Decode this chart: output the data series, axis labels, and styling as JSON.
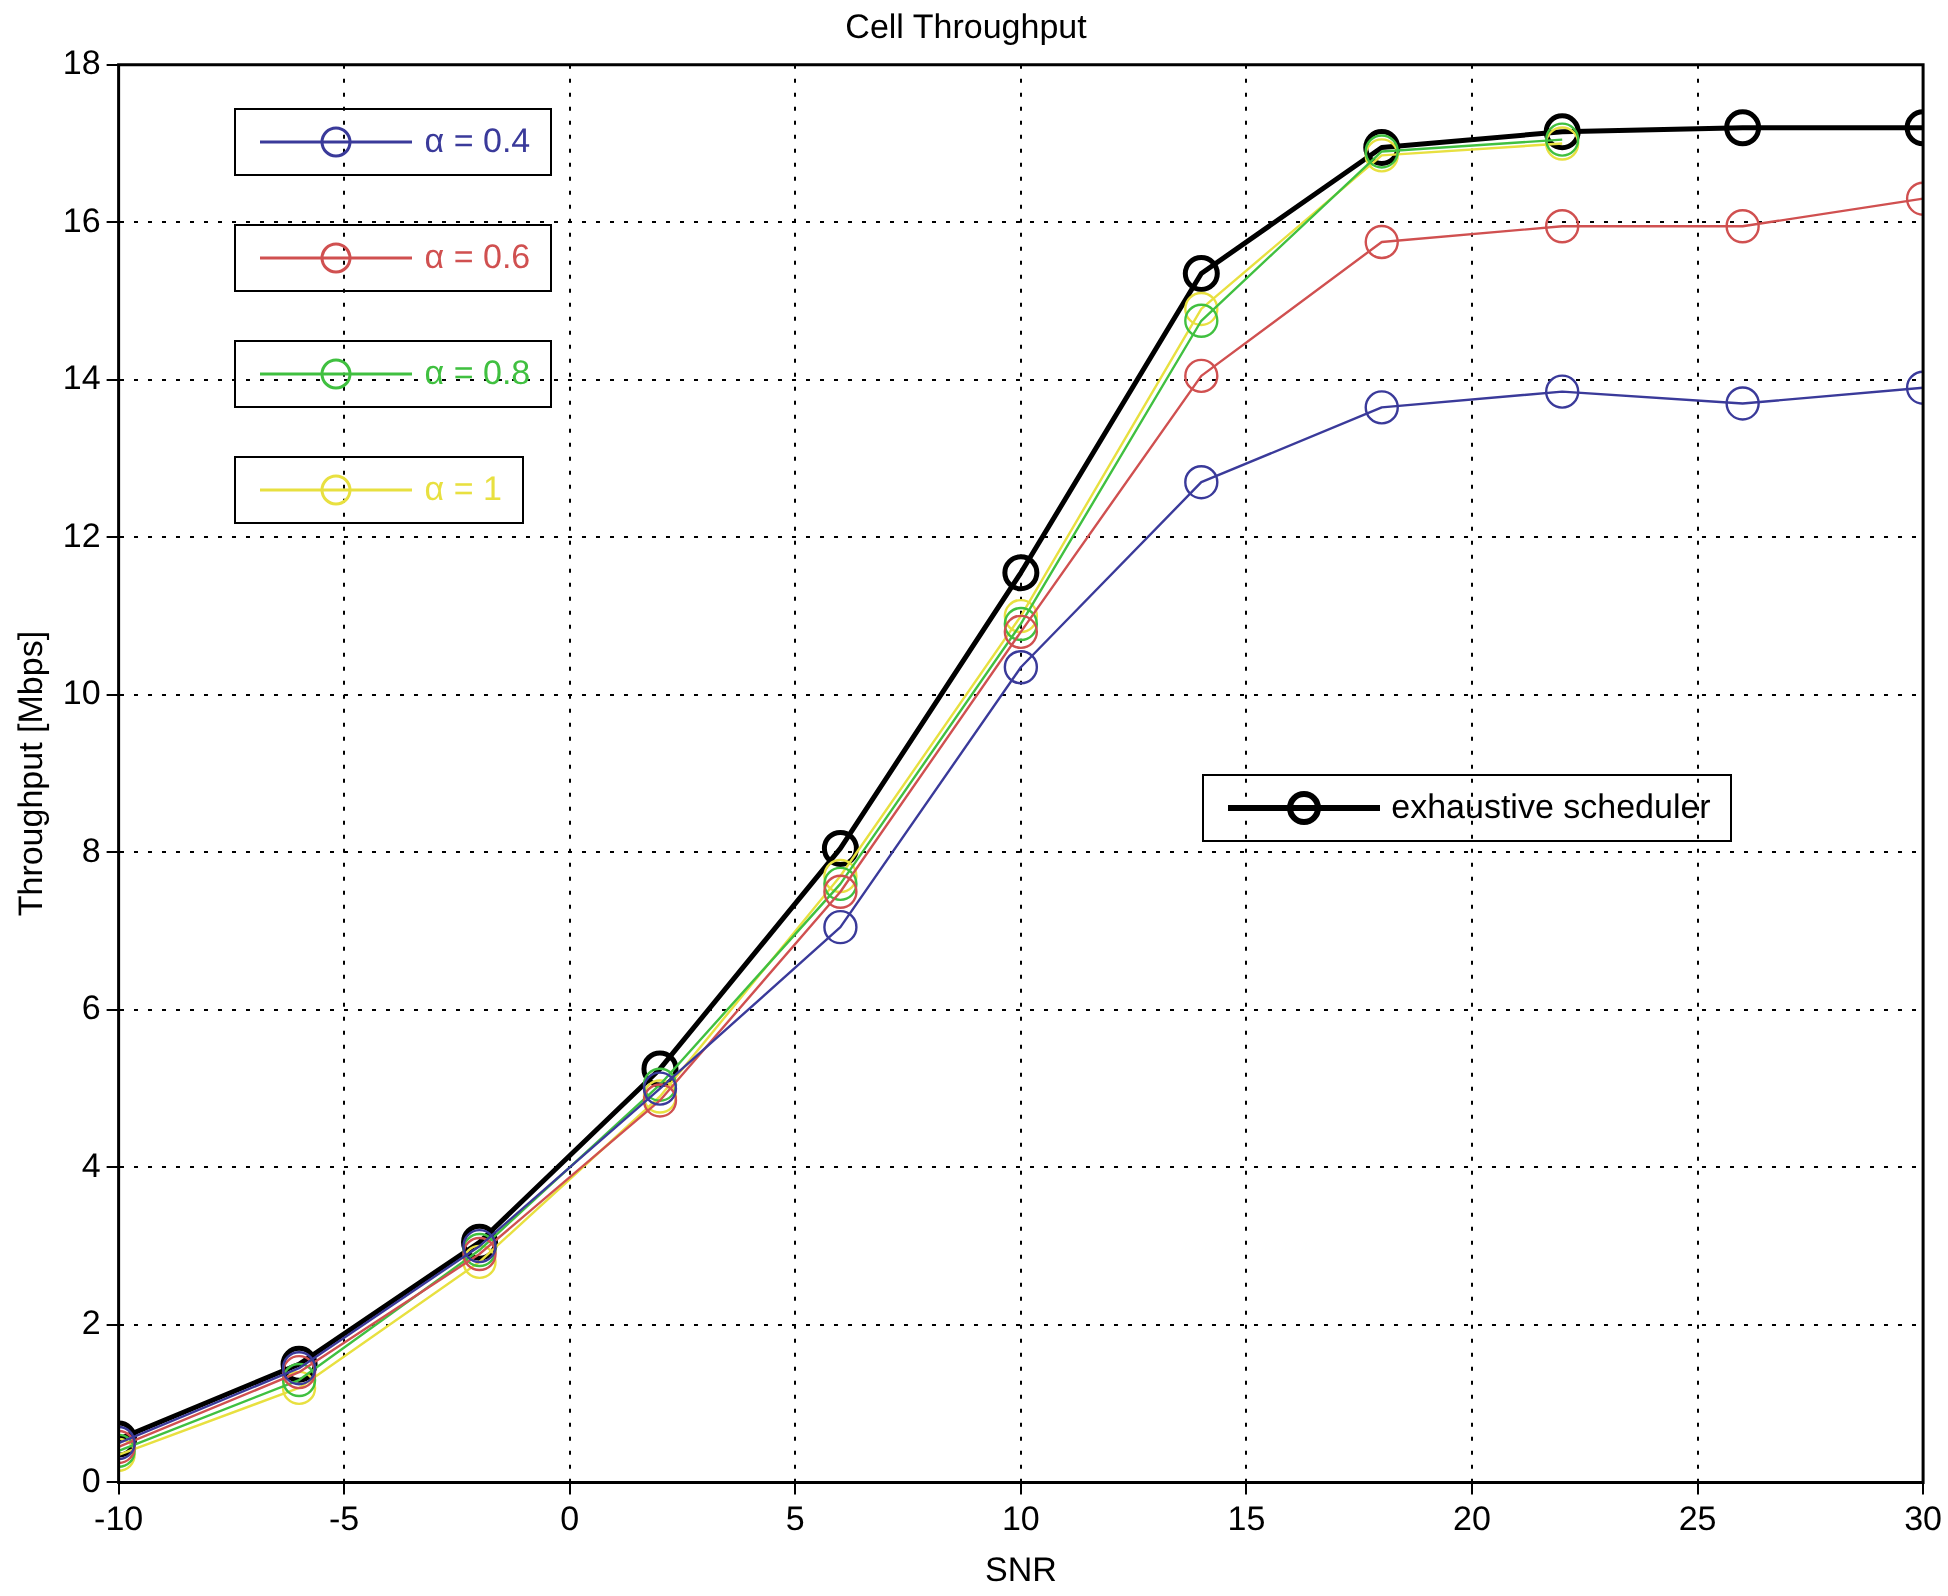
{
  "chart_data": {
    "type": "line",
    "title": "Cell Throughput",
    "xlabel": "SNR",
    "ylabel": "Throughput [Mbps]",
    "x": [
      -10,
      -6,
      -2,
      2,
      6,
      10,
      14,
      18,
      22,
      26,
      30
    ],
    "series": [
      {
        "name": "α = 0.4",
        "color": "#3a3a9a",
        "values": [
          0.5,
          1.45,
          3.0,
          5.0,
          7.05,
          10.35,
          12.7,
          13.65,
          13.85,
          13.7,
          13.9
        ]
      },
      {
        "name": "α = 0.6",
        "color": "#d05050",
        "values": [
          0.45,
          1.4,
          2.9,
          4.85,
          7.5,
          10.8,
          14.05,
          15.75,
          15.95,
          15.95,
          16.3
        ]
      },
      {
        "name": "α = 0.8",
        "color": "#40c040",
        "values": [
          0.4,
          1.3,
          2.95,
          5.05,
          7.6,
          10.9,
          14.75,
          16.9,
          17.05,
          null,
          null
        ]
      },
      {
        "name": "α = 1",
        "color": "#e8e040",
        "values": [
          0.35,
          1.2,
          2.8,
          4.9,
          7.7,
          11.0,
          14.9,
          16.85,
          17.0,
          null,
          null
        ]
      },
      {
        "name": "exhaustive scheduler",
        "color": "#000000",
        "values": [
          0.55,
          1.5,
          3.05,
          5.25,
          8.05,
          11.55,
          15.35,
          16.95,
          17.15,
          17.2,
          17.2
        ]
      }
    ],
    "xlim": [
      -10,
      30
    ],
    "xticks": [
      -10,
      -5,
      0,
      5,
      10,
      15,
      20,
      25,
      30
    ],
    "ylim": [
      0,
      18
    ],
    "yticks": [
      0,
      2,
      4,
      6,
      8,
      10,
      12,
      14,
      16,
      18
    ],
    "grid": true,
    "legend": "top left",
    "marker": "circle",
    "line_style": "solid"
  }
}
